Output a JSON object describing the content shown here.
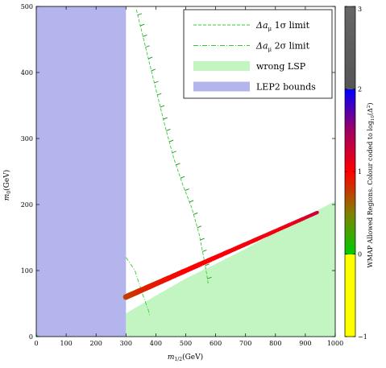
{
  "chart_data": {
    "type": "scatter",
    "xlabel": "m1/2(GeV)",
    "xlabel_main": "m",
    "xlabel_sub": "1/2",
    "xlabel_rest": "(GeV)",
    "ylabel_main": "m",
    "ylabel_sub": "0",
    "ylabel_rest": "(GeV)",
    "xlim": [
      0,
      1000
    ],
    "ylim": [
      0,
      500
    ],
    "xticks": [
      "0",
      "100",
      "200",
      "300",
      "400",
      "500",
      "600",
      "700",
      "800",
      "900",
      "1000"
    ],
    "yticks": [
      "0",
      "100",
      "200",
      "300",
      "400",
      "500"
    ],
    "legend": {
      "placement": "top-right",
      "entries": [
        {
          "label_main": "Δa",
          "label_sub": "μ",
          "label_rest": " 1σ limit",
          "style": "dashed",
          "color": "#33cc33"
        },
        {
          "label_main": "Δa",
          "label_sub": "μ",
          "label_rest": " 2σ limit",
          "style": "dashdot",
          "color": "#33cc33"
        },
        {
          "label_main": "wrong LSP",
          "label_sub": "",
          "label_rest": "",
          "style": "fill",
          "color": "#c2f5c2"
        },
        {
          "label_main": "LEP2 bounds",
          "label_sub": "",
          "label_rest": "",
          "style": "fill",
          "color": "#b5b5ee"
        }
      ]
    },
    "lep2_region": {
      "x_max": 300,
      "y_max": 500,
      "color": "#b5b5ee"
    },
    "wrong_lsp_region": {
      "color": "#c2f5c2",
      "boundary": [
        [
          300,
          35
        ],
        [
          400,
          62
        ],
        [
          500,
          88
        ],
        [
          600,
          110
        ],
        [
          700,
          133
        ],
        [
          800,
          158
        ],
        [
          900,
          182
        ],
        [
          1000,
          205
        ]
      ]
    },
    "limit_1sigma": {
      "color": "#33cc33",
      "points": [
        [
          335,
          495
        ],
        [
          370,
          430
        ],
        [
          400,
          375
        ],
        [
          430,
          320
        ],
        [
          460,
          270
        ],
        [
          490,
          230
        ],
        [
          520,
          195
        ],
        [
          545,
          155
        ],
        [
          560,
          120
        ],
        [
          570,
          95
        ],
        [
          575,
          80
        ]
      ]
    },
    "limit_2sigma": {
      "color": "#33cc33",
      "points": [
        [
          300,
          120
        ],
        [
          330,
          100
        ],
        [
          355,
          65
        ],
        [
          375,
          40
        ],
        [
          380,
          30
        ]
      ]
    },
    "wmap_band": {
      "points": [
        [
          300,
          60,
          0.75
        ],
        [
          350,
          70,
          0.85
        ],
        [
          400,
          80,
          0.9
        ],
        [
          450,
          90,
          0.95
        ],
        [
          500,
          100,
          1.0
        ],
        [
          550,
          110,
          1.0
        ],
        [
          600,
          120,
          1.02
        ],
        [
          650,
          130,
          1.05
        ],
        [
          700,
          140,
          1.05
        ],
        [
          750,
          150,
          1.07
        ],
        [
          800,
          160,
          1.08
        ],
        [
          850,
          170,
          1.1
        ],
        [
          900,
          180,
          1.2
        ],
        [
          940,
          188,
          1.3
        ]
      ]
    },
    "colorbar": {
      "label": "WMAP Allowed Regions. Colour coded to log10(Δ²)",
      "label_main": "WMAP Allowed Regions. Colour coded to log",
      "label_sub": "10",
      "label_rest": "(Δ",
      "label_sup": "2",
      "label_end": ")",
      "range": [
        -1,
        3
      ],
      "ticks": [
        "−1",
        "0",
        "1",
        "2",
        "3"
      ],
      "stops": [
        {
          "v": -1,
          "color": "#ffff00"
        },
        {
          "v": 0,
          "color": "#ffff00"
        },
        {
          "v": 0,
          "color": "#00cc00"
        },
        {
          "v": 0.5,
          "color": "#808000"
        },
        {
          "v": 1,
          "color": "#ff0000"
        },
        {
          "v": 1.5,
          "color": "#a00060"
        },
        {
          "v": 2,
          "color": "#0000ff"
        },
        {
          "v": 2,
          "color": "#555555"
        },
        {
          "v": 3,
          "color": "#666666"
        }
      ]
    }
  }
}
